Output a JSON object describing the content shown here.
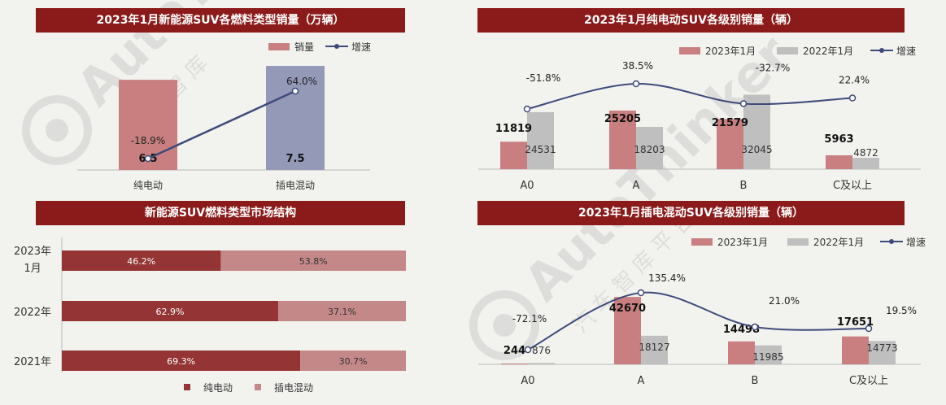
{
  "colors": {
    "banner": "#8b1a1a",
    "bar_red": "#c97f7f",
    "bar_gray": "#bfbfbf",
    "bar_blue": "#9499b8",
    "line": "#3d4a7a",
    "bar_dark": "#943434",
    "bar_light": "#c48888"
  },
  "watermark": {
    "text": "AutoThinker",
    "sub1": "汽 车 智 库",
    "sub2": "汽 车 智 库 平 台"
  },
  "chart_data": [
    {
      "id": "chart1",
      "type": "bar",
      "title": "2023年1月新能源SUV各燃料类型销量（万辆）",
      "legend": [
        "销量",
        "增速"
      ],
      "categories": [
        "纯电动",
        "插电混动"
      ],
      "values": [
        6.5,
        7.5
      ],
      "value_labels": [
        "6.5",
        "7.5"
      ],
      "growth": [
        -18.9,
        64.0
      ],
      "growth_labels": [
        "-18.9%",
        "64.0%"
      ],
      "ylim": [
        0,
        8.5
      ]
    },
    {
      "id": "chart2",
      "type": "bar",
      "title": "2023年1月纯电动SUV各级别销量（辆）",
      "legend": [
        "2023年1月",
        "2022年1月",
        "增速"
      ],
      "categories": [
        "A0",
        "A",
        "B",
        "C及以上"
      ],
      "series": [
        {
          "name": "2023年1月",
          "values": [
            11819,
            25205,
            21579,
            5963
          ],
          "labels": [
            "11819",
            "25205",
            "21579",
            "5963"
          ]
        },
        {
          "name": "2022年1月",
          "values": [
            24531,
            18203,
            32045,
            4872
          ],
          "labels": [
            "24531",
            "18203",
            "32045",
            "4872"
          ]
        }
      ],
      "growth": [
        -51.8,
        38.5,
        -32.7,
        22.4
      ],
      "growth_labels": [
        "-51.8%",
        "38.5%",
        "-32.7%",
        "22.4%"
      ],
      "ylim": [
        0,
        45000
      ]
    },
    {
      "id": "chart3",
      "type": "bar",
      "title": "新能源SUV燃料类型市场结构",
      "legend": [
        "纯电动",
        "插电混动"
      ],
      "categories": [
        [
          "2023年",
          "1月"
        ],
        [
          "2022年"
        ],
        [
          "2021年"
        ]
      ],
      "series": [
        {
          "name": "纯电动",
          "values": [
            46.2,
            62.9,
            69.3
          ],
          "labels": [
            "46.2%",
            "62.9%",
            "69.3%"
          ]
        },
        {
          "name": "插电混动",
          "values": [
            53.8,
            37.1,
            30.7
          ],
          "labels": [
            "53.8%",
            "37.1%",
            "30.7%"
          ]
        }
      ],
      "xlim": [
        0,
        100
      ]
    },
    {
      "id": "chart4",
      "type": "bar",
      "title": "2023年1月插电混动SUV各级别销量（辆）",
      "legend": [
        "2023年1月",
        "2022年1月",
        "增速"
      ],
      "categories": [
        "A0",
        "A",
        "B",
        "C及以上"
      ],
      "series": [
        {
          "name": "2023年1月",
          "values": [
            244,
            42670,
            14498,
            17651
          ],
          "labels": [
            "244",
            "42670",
            "14498",
            "17651"
          ]
        },
        {
          "name": "2022年1月",
          "values": [
            876,
            18127,
            11985,
            14773
          ],
          "labels": [
            "876",
            "18127",
            "11985",
            "14773"
          ]
        }
      ],
      "growth": [
        -72.1,
        135.4,
        21.0,
        19.5
      ],
      "growth_labels": [
        "-72.1%",
        "135.4%",
        "21.0%",
        "19.5%"
      ],
      "ylim": [
        0,
        50000
      ]
    }
  ]
}
